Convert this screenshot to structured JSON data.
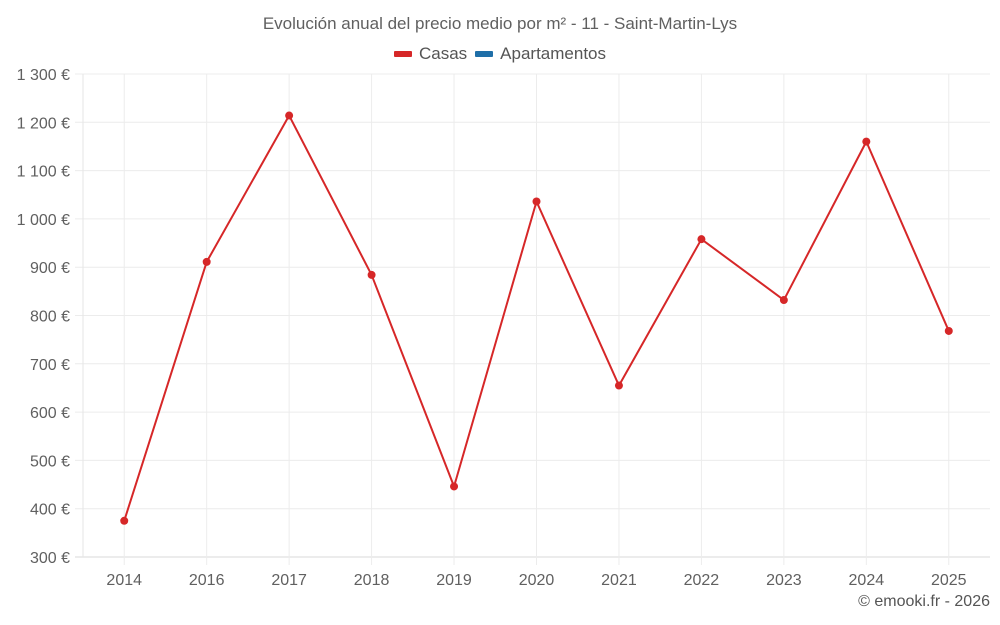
{
  "title": "Evolución anual del precio medio por m² - 11 - Saint-Martin-Lys",
  "legend": [
    {
      "label": "Casas",
      "color": "#d62728"
    },
    {
      "label": "Apartamentos",
      "color": "#1f6fa8"
    }
  ],
  "credit": "© emooki.fr - 2026",
  "chart_data": {
    "type": "line",
    "title": "Evolución anual del precio medio por m² - 11 - Saint-Martin-Lys",
    "xlabel": "",
    "ylabel": "",
    "categories": [
      "2014",
      "2016",
      "2017",
      "2018",
      "2019",
      "2020",
      "2021",
      "2022",
      "2023",
      "2024",
      "2025"
    ],
    "series": [
      {
        "name": "Casas",
        "color": "#d62728",
        "values": [
          375,
          911,
          1214,
          884,
          446,
          1036,
          655,
          958,
          832,
          1160,
          768
        ]
      },
      {
        "name": "Apartamentos",
        "color": "#1f6fa8",
        "values": []
      }
    ],
    "ylim": [
      300,
      1300
    ],
    "yticks": [
      300,
      400,
      500,
      600,
      700,
      800,
      900,
      1000,
      1100,
      1200,
      1300
    ],
    "ytick_labels": [
      "300 €",
      "400 €",
      "500 €",
      "600 €",
      "700 €",
      "800 €",
      "900 €",
      "1 000 €",
      "1 100 €",
      "1 200 €",
      "1 300 €"
    ],
    "grid": true,
    "legend_position": "top"
  }
}
